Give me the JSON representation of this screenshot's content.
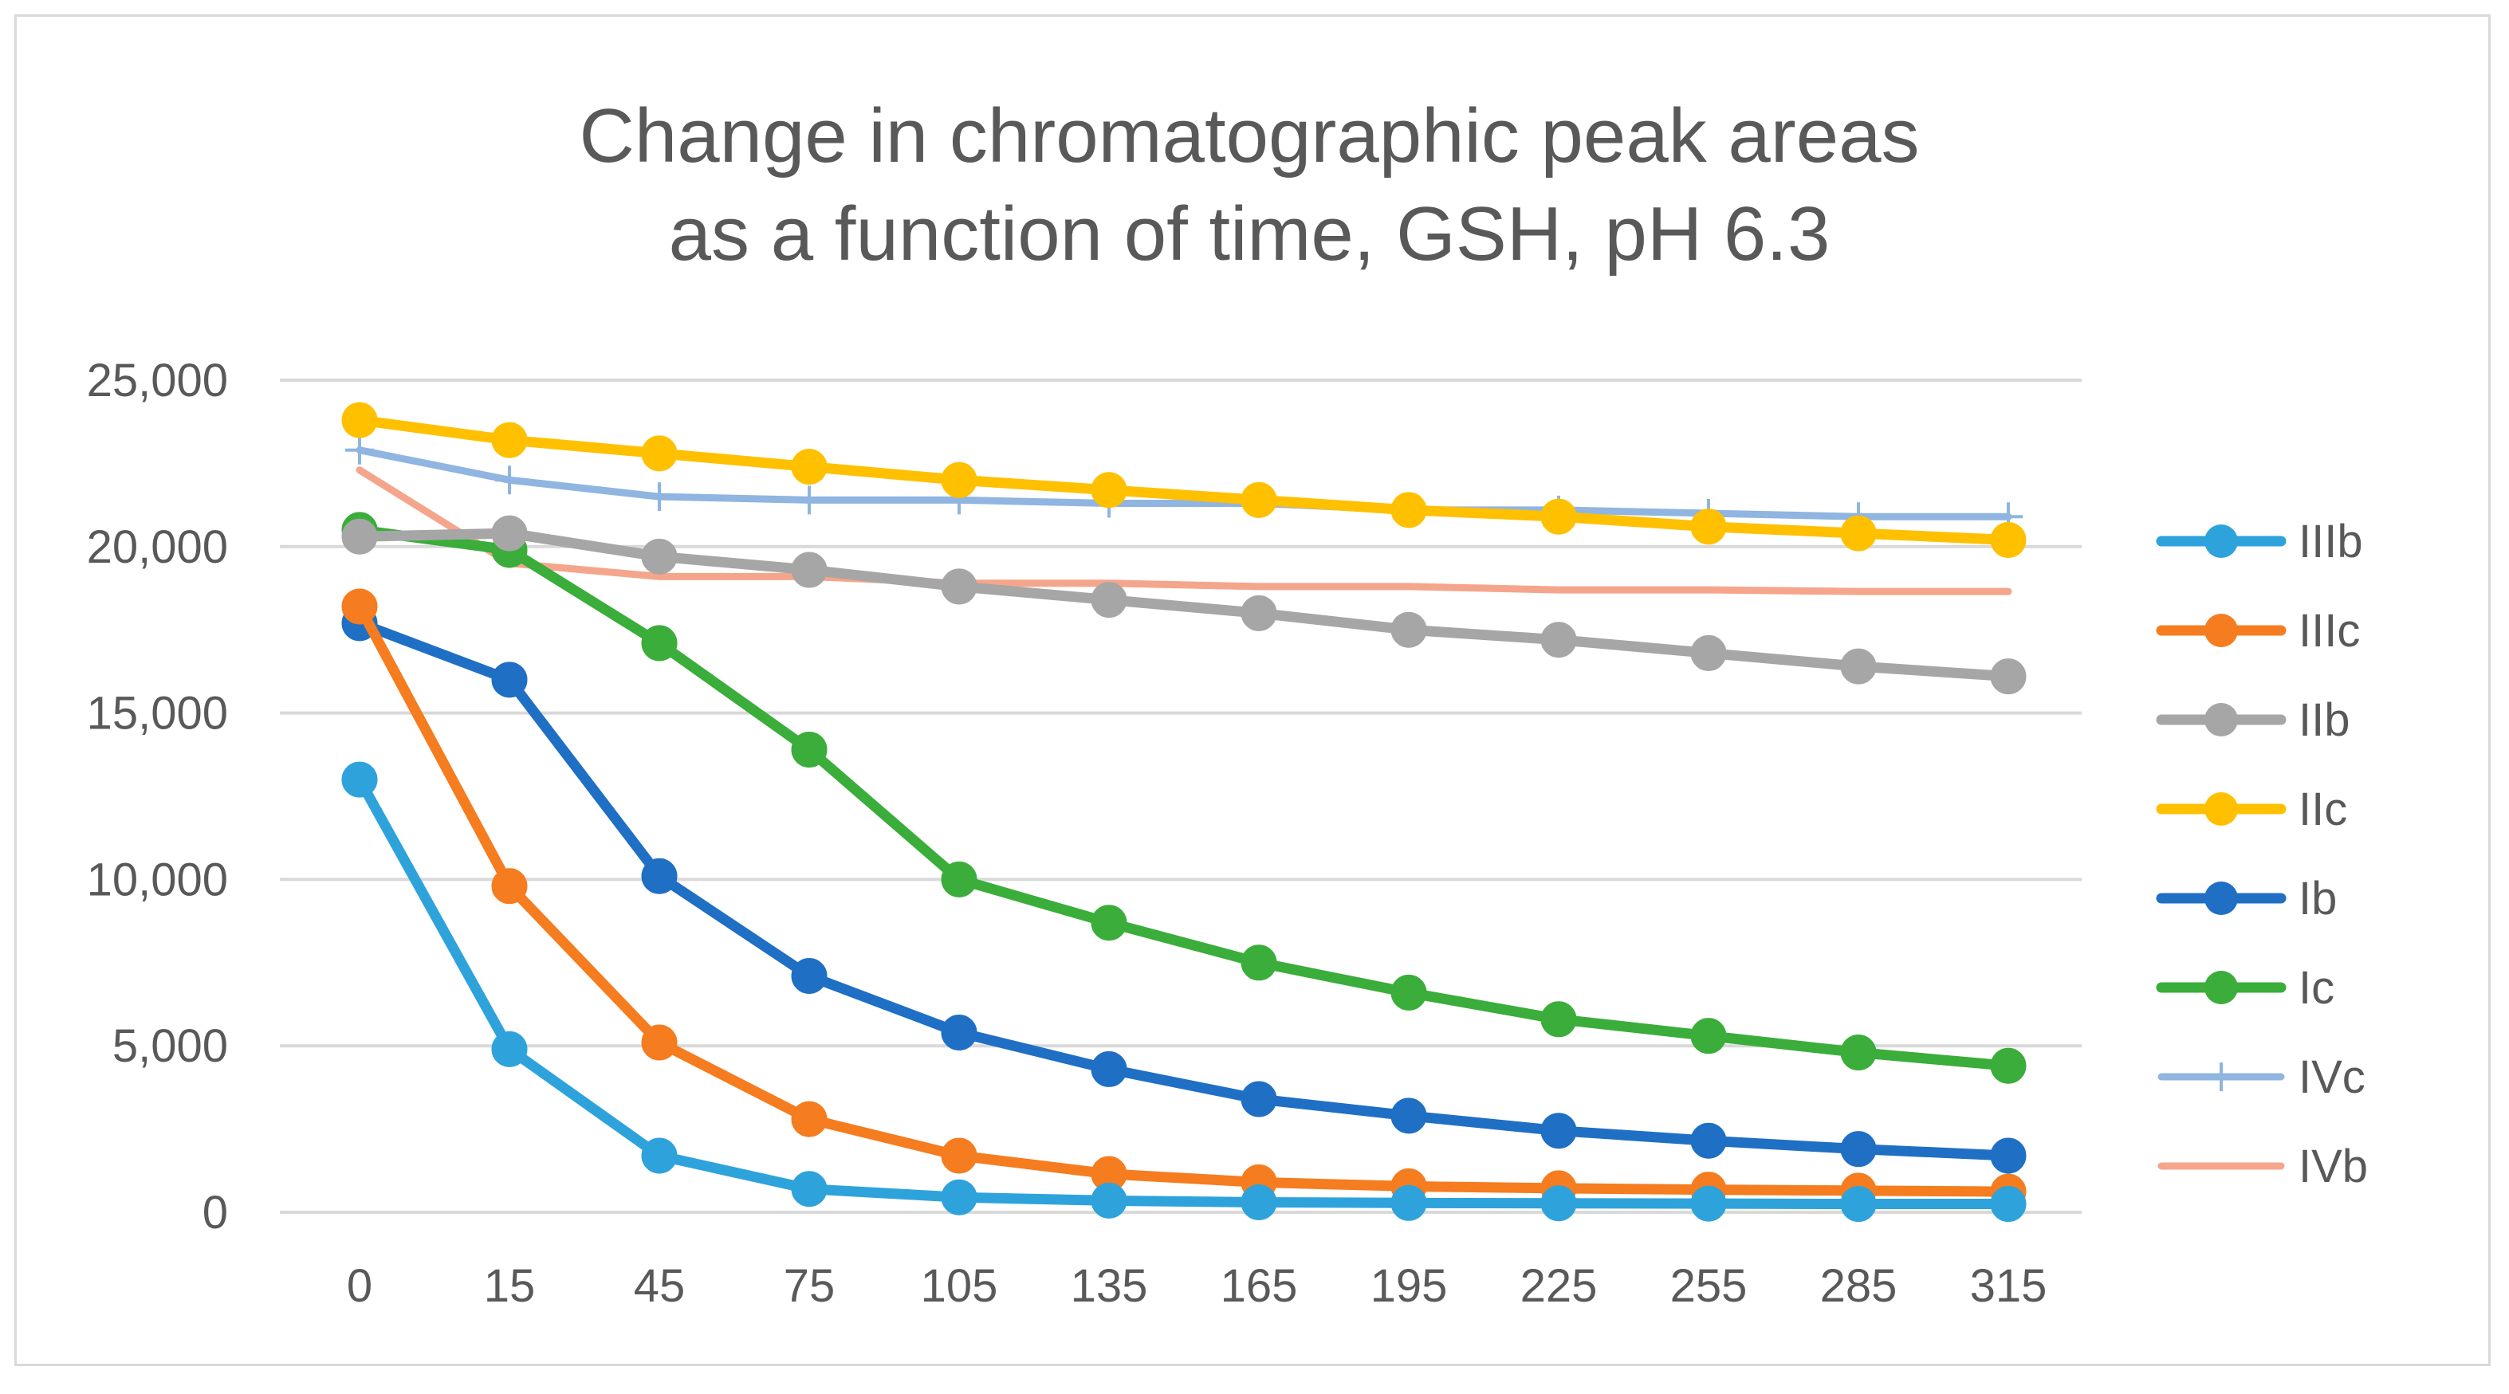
{
  "chart_data": {
    "type": "line",
    "title": "Change in chromatographic peak areas as a function of time, GSH, pH 6.3",
    "title_lines": [
      "Change in chromatographic peak areas",
      "as a function of time, GSH, pH 6.3"
    ],
    "xlabel": "",
    "ylabel": "",
    "categories": [
      "0",
      "15",
      "45",
      "75",
      "105",
      "135",
      "165",
      "195",
      "225",
      "255",
      "285",
      "315"
    ],
    "ylim": [
      0,
      25000
    ],
    "yticks": [
      0,
      5000,
      10000,
      15000,
      20000,
      25000
    ],
    "ytick_labels": [
      "0",
      "5,000",
      "10,000",
      "15,000",
      "20,000",
      "25,000"
    ],
    "grid": true,
    "legend_position": "right",
    "series": [
      {
        "name": "IIIb",
        "color": "#2ea3db",
        "marker": "circle",
        "values": [
          13000,
          4900,
          1700,
          700,
          450,
          350,
          300,
          280,
          270,
          260,
          250,
          250
        ]
      },
      {
        "name": "IIIc",
        "color": "#f57c1f",
        "marker": "circle",
        "values": [
          18200,
          9800,
          5100,
          2800,
          1700,
          1150,
          900,
          780,
          720,
          680,
          650,
          620
        ]
      },
      {
        "name": "IIb",
        "color": "#a6a6a6",
        "marker": "circle",
        "values": [
          20300,
          20400,
          19700,
          19300,
          18800,
          18400,
          18000,
          17500,
          17200,
          16800,
          16400,
          16100
        ]
      },
      {
        "name": "IIc",
        "color": "#ffc000",
        "marker": "circle",
        "values": [
          23800,
          23200,
          22800,
          22400,
          22000,
          21700,
          21400,
          21100,
          20900,
          20600,
          20400,
          20200
        ]
      },
      {
        "name": "Ib",
        "color": "#1f6fc4",
        "marker": "circle",
        "values": [
          17700,
          16000,
          10100,
          7100,
          5400,
          4300,
          3400,
          2900,
          2450,
          2150,
          1900,
          1700
        ]
      },
      {
        "name": "Ic",
        "color": "#3aad3a",
        "marker": "circle",
        "values": [
          20500,
          19900,
          17100,
          13900,
          10000,
          8700,
          7500,
          6600,
          5800,
          5300,
          4800,
          4400
        ]
      },
      {
        "name": "IVc",
        "color": "#8fb5e0",
        "marker": "plus",
        "values": [
          22900,
          22000,
          21500,
          21400,
          21400,
          21300,
          21300,
          21100,
          21100,
          21000,
          20900,
          20900
        ]
      },
      {
        "name": "IVb",
        "color": "#f5a58c",
        "marker": "none",
        "values": [
          22300,
          19500,
          19100,
          19100,
          18900,
          18900,
          18800,
          18800,
          18700,
          18700,
          18650,
          18650
        ]
      }
    ]
  }
}
